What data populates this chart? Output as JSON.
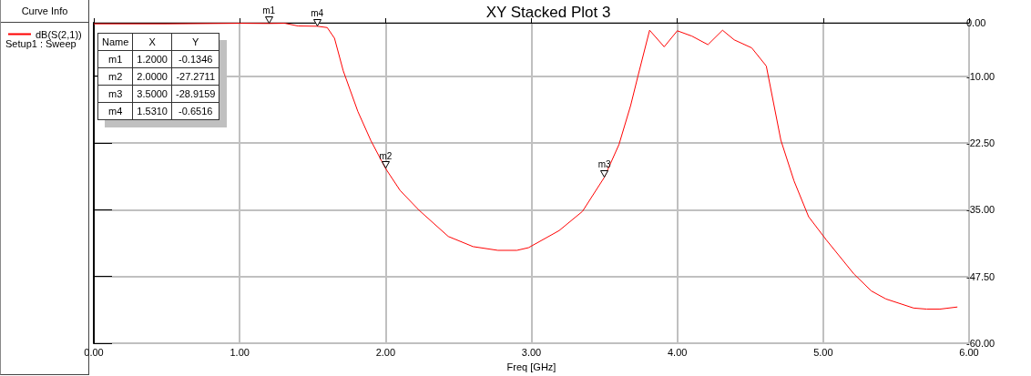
{
  "chart_data": {
    "type": "line",
    "title": "XY Stacked Plot 3",
    "xlabel": "Freq [GHz]",
    "legend_title": "Curve Info",
    "x": [
      0,
      0.5,
      1.0,
      1.2,
      1.31,
      1.4,
      1.531,
      1.6,
      1.65,
      1.71,
      1.81,
      1.9,
      2.0,
      2.1,
      2.23,
      2.43,
      2.6,
      2.77,
      2.9,
      2.98,
      3.19,
      3.35,
      3.5,
      3.6,
      3.68,
      3.73,
      3.81,
      3.91,
      4.0,
      4.1,
      4.21,
      4.31,
      4.39,
      4.51,
      4.61,
      4.71,
      4.8,
      4.9,
      5.02,
      5.21,
      5.33,
      5.43,
      5.62,
      5.71,
      5.8,
      5.92
    ],
    "series": [
      {
        "name": "dB(S(2,1))",
        "color": "#ff0000",
        "values": [
          -0.2,
          -0.2,
          -0.1,
          -0.1346,
          -0.1,
          -0.6,
          -0.6516,
          -0.9,
          -2.9,
          -9,
          -16.6,
          -22.1,
          -27.2711,
          -31.4,
          -35.1,
          -40.0,
          -41.9,
          -42.6,
          -42.6,
          -42.1,
          -38.9,
          -35.3,
          -28.9159,
          -22.8,
          -15.5,
          -10,
          -1.4,
          -4.5,
          -1.5,
          -2.5,
          -4.1,
          -1.4,
          -3.2,
          -4.7,
          -8.1,
          -22,
          -29.6,
          -36.3,
          -40.6,
          -47,
          -50.2,
          -51.7,
          -53.4,
          -53.6,
          -53.6,
          -53.2
        ]
      }
    ],
    "xlim": [
      0,
      6
    ],
    "xticks": [
      {
        "value": 0,
        "label": "0.00"
      },
      {
        "value": 1,
        "label": "1.00"
      },
      {
        "value": 2,
        "label": "2.00"
      },
      {
        "value": 3,
        "label": "3.00"
      },
      {
        "value": 4,
        "label": "4.00"
      },
      {
        "value": 5,
        "label": "5.00"
      },
      {
        "value": 6,
        "label": "6.00"
      }
    ],
    "ylim": [
      -60,
      0
    ],
    "yticks": [
      {
        "value": 0,
        "label": "0.00"
      },
      {
        "value": -10,
        "label": "-10.00"
      },
      {
        "value": -22.5,
        "label": "-22.50"
      },
      {
        "value": -35,
        "label": "-35.00"
      },
      {
        "value": -47.5,
        "label": "-47.50"
      },
      {
        "value": -60,
        "label": "-60.00"
      }
    ],
    "grid": true,
    "legend": "left",
    "marker": "none",
    "line_style": "solid",
    "annotations": [
      "Setup1 : Sweep",
      "Name",
      "X",
      "Y",
      "m1",
      "1.2000",
      "-0.1346",
      "m2",
      "2.0000",
      "-27.2711",
      "m3",
      "3.5000",
      "-28.9159",
      "m4",
      "1.5310",
      "-0.6516",
      {
        "text": "m1",
        "x": 1.2,
        "y": -0.1346
      },
      {
        "text": "m2",
        "x": 2.0,
        "y": -27.2711
      },
      {
        "text": "m3",
        "x": 3.5,
        "y": -28.9159
      },
      {
        "text": "m4",
        "x": 1.531,
        "y": -0.6516
      }
    ]
  }
}
